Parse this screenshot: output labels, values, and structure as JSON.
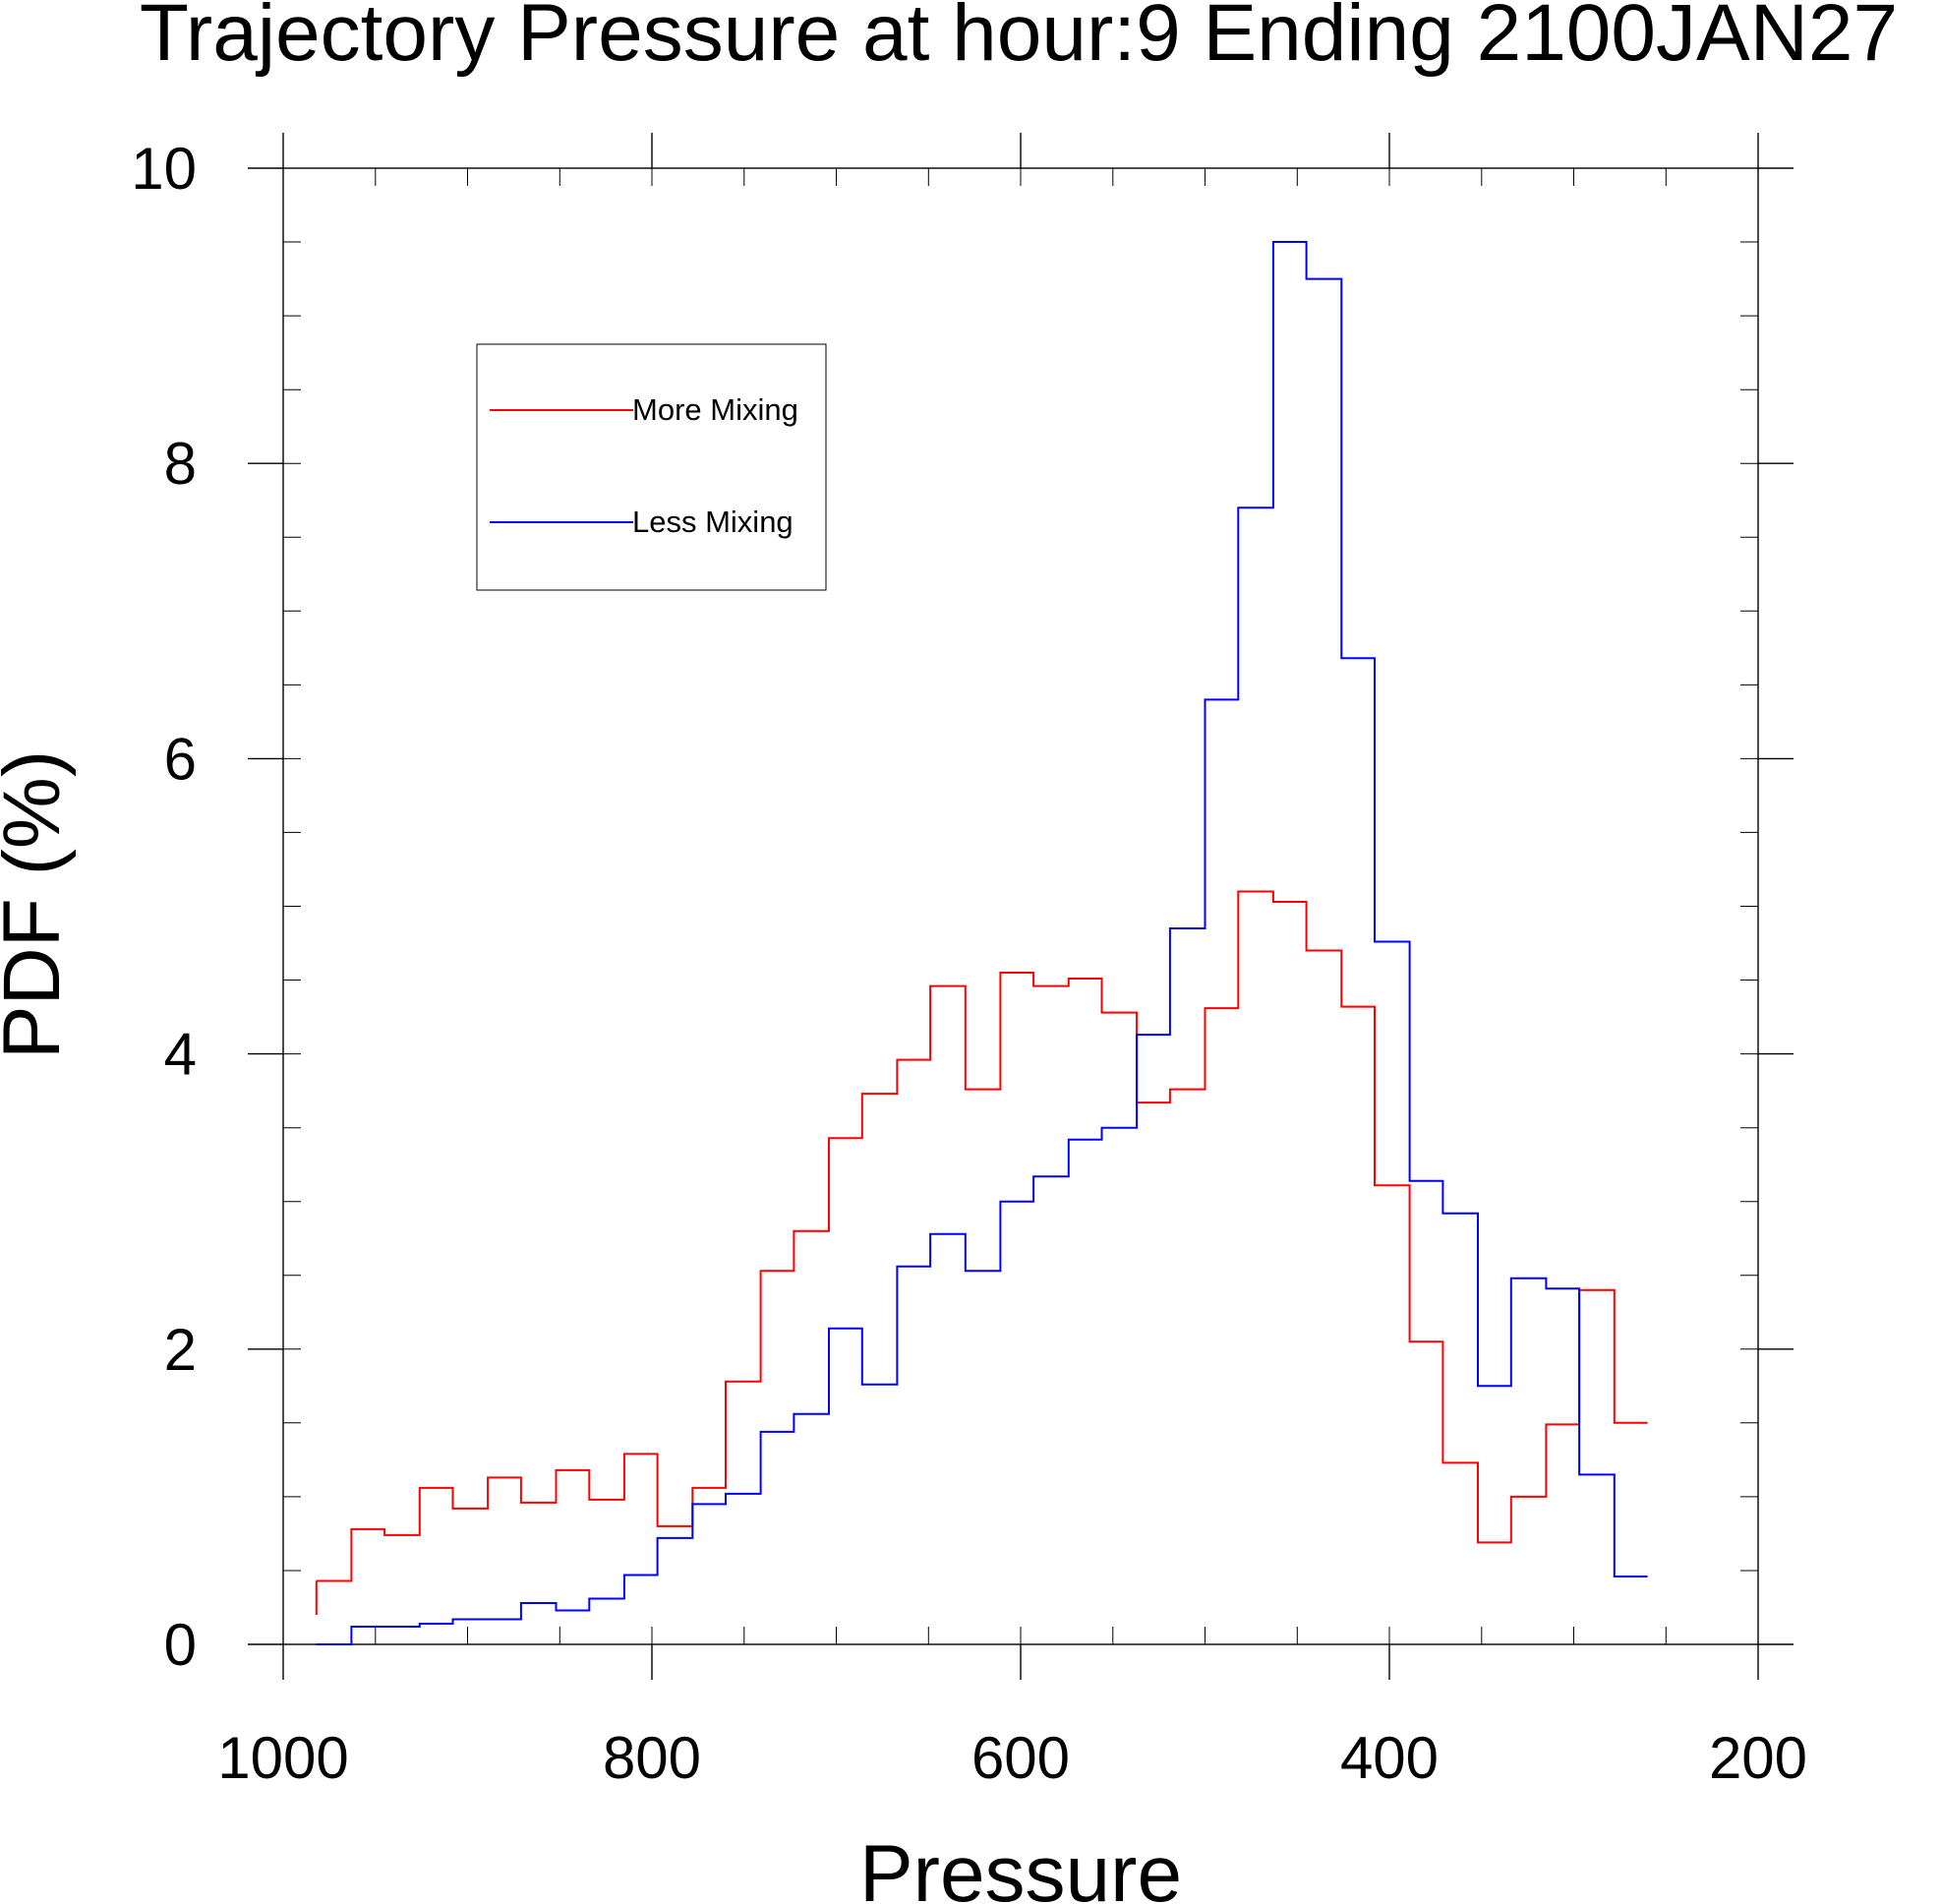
{
  "chart_data": {
    "type": "line",
    "step": true,
    "title": "Trajectory Pressure at hour:9 Ending 2100JAN27",
    "xlabel": "Pressure",
    "ylabel": "PDF (%)",
    "xlim": [
      1000,
      200
    ],
    "x_reversed": true,
    "ylim": [
      0,
      10
    ],
    "x_major_ticks": [
      1000,
      800,
      600,
      400,
      200
    ],
    "x_tick_labels": [
      "1000",
      "800",
      "600",
      "400",
      "200"
    ],
    "y_major_ticks": [
      0,
      2,
      4,
      6,
      8,
      10
    ],
    "y_tick_labels": [
      "0",
      "2",
      "4",
      "6",
      "8",
      "10"
    ],
    "x_minor_step": 50,
    "y_minor_step": 0.5,
    "grid": false,
    "legend_position": "top-left",
    "bin_edges": [
      982,
      963,
      945,
      926,
      908,
      889,
      871,
      852,
      834,
      815,
      797,
      778,
      760,
      741,
      723,
      704,
      686,
      667,
      649,
      630,
      611,
      593,
      574,
      556,
      537,
      519,
      500,
      482,
      463,
      445,
      426,
      408,
      389,
      371,
      352,
      334,
      315,
      297,
      278,
      260
    ],
    "series": [
      {
        "name": "More Mixing",
        "color": "#ff0000",
        "values": [
          0.43,
          0.78,
          0.74,
          1.06,
          0.92,
          1.13,
          0.96,
          1.18,
          0.98,
          1.29,
          0.8,
          1.06,
          1.78,
          2.53,
          2.8,
          3.43,
          3.73,
          3.96,
          4.46,
          3.76,
          4.55,
          4.46,
          4.51,
          4.28,
          3.67,
          3.76,
          4.31,
          5.1,
          5.03,
          4.7,
          4.32,
          3.11,
          2.05,
          1.23,
          0.69,
          1.0,
          1.49,
          2.4,
          1.5
        ]
      },
      {
        "name": "Less Mixing",
        "color": "#0000ff",
        "values": [
          0.0,
          0.12,
          0.12,
          0.14,
          0.17,
          0.17,
          0.28,
          0.23,
          0.31,
          0.47,
          0.72,
          0.95,
          1.02,
          1.44,
          1.56,
          2.14,
          1.76,
          2.56,
          2.78,
          2.53,
          3.0,
          3.17,
          3.42,
          3.5,
          4.13,
          4.85,
          6.4,
          7.7,
          9.5,
          9.25,
          6.68,
          4.76,
          3.14,
          2.92,
          1.75,
          2.48,
          2.41,
          1.15,
          0.46
        ]
      }
    ]
  }
}
